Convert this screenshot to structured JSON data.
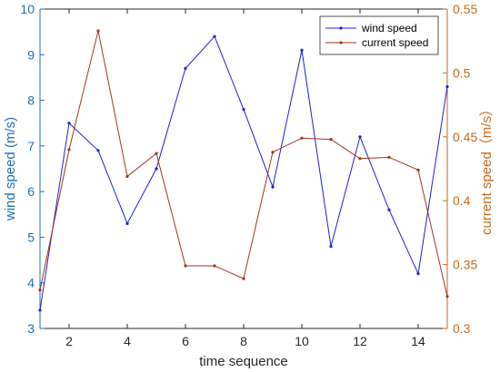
{
  "chart_data": {
    "type": "line",
    "xlabel": "time sequence",
    "x": [
      1,
      2,
      3,
      4,
      5,
      6,
      7,
      8,
      9,
      10,
      11,
      12,
      13,
      14,
      15
    ],
    "xlim": [
      1,
      15
    ],
    "xticks": [
      2,
      4,
      6,
      8,
      10,
      12,
      14
    ],
    "y_left": {
      "label": "wind speed  (m/s)",
      "ylim": [
        3,
        10
      ],
      "ticks": [
        3,
        4,
        5,
        6,
        7,
        8,
        9,
        10
      ]
    },
    "y_right": {
      "label": "current speed（m/s）",
      "ylim": [
        0.3,
        0.55
      ],
      "ticks": [
        0.3,
        0.35,
        0.4,
        0.45,
        0.5,
        0.55
      ]
    },
    "series": [
      {
        "name": "wind speed",
        "axis": "left",
        "color": "#1f1fd0",
        "values": [
          3.4,
          7.5,
          6.9,
          5.3,
          6.5,
          8.7,
          9.4,
          7.8,
          6.1,
          9.1,
          4.8,
          7.2,
          5.6,
          4.2,
          8.3
        ]
      },
      {
        "name": "current speed",
        "axis": "right",
        "color": "#a0341a",
        "values": [
          0.33,
          0.44,
          0.533,
          0.419,
          0.437,
          0.349,
          0.349,
          0.339,
          0.438,
          0.449,
          0.448,
          0.433,
          0.434,
          0.424,
          0.325
        ]
      }
    ],
    "legend_position": "top-right",
    "grid": false
  },
  "colors": {
    "left_axis": "#1b6fb5",
    "right_axis": "#c46a1a",
    "bottom_axis": "#262626"
  }
}
